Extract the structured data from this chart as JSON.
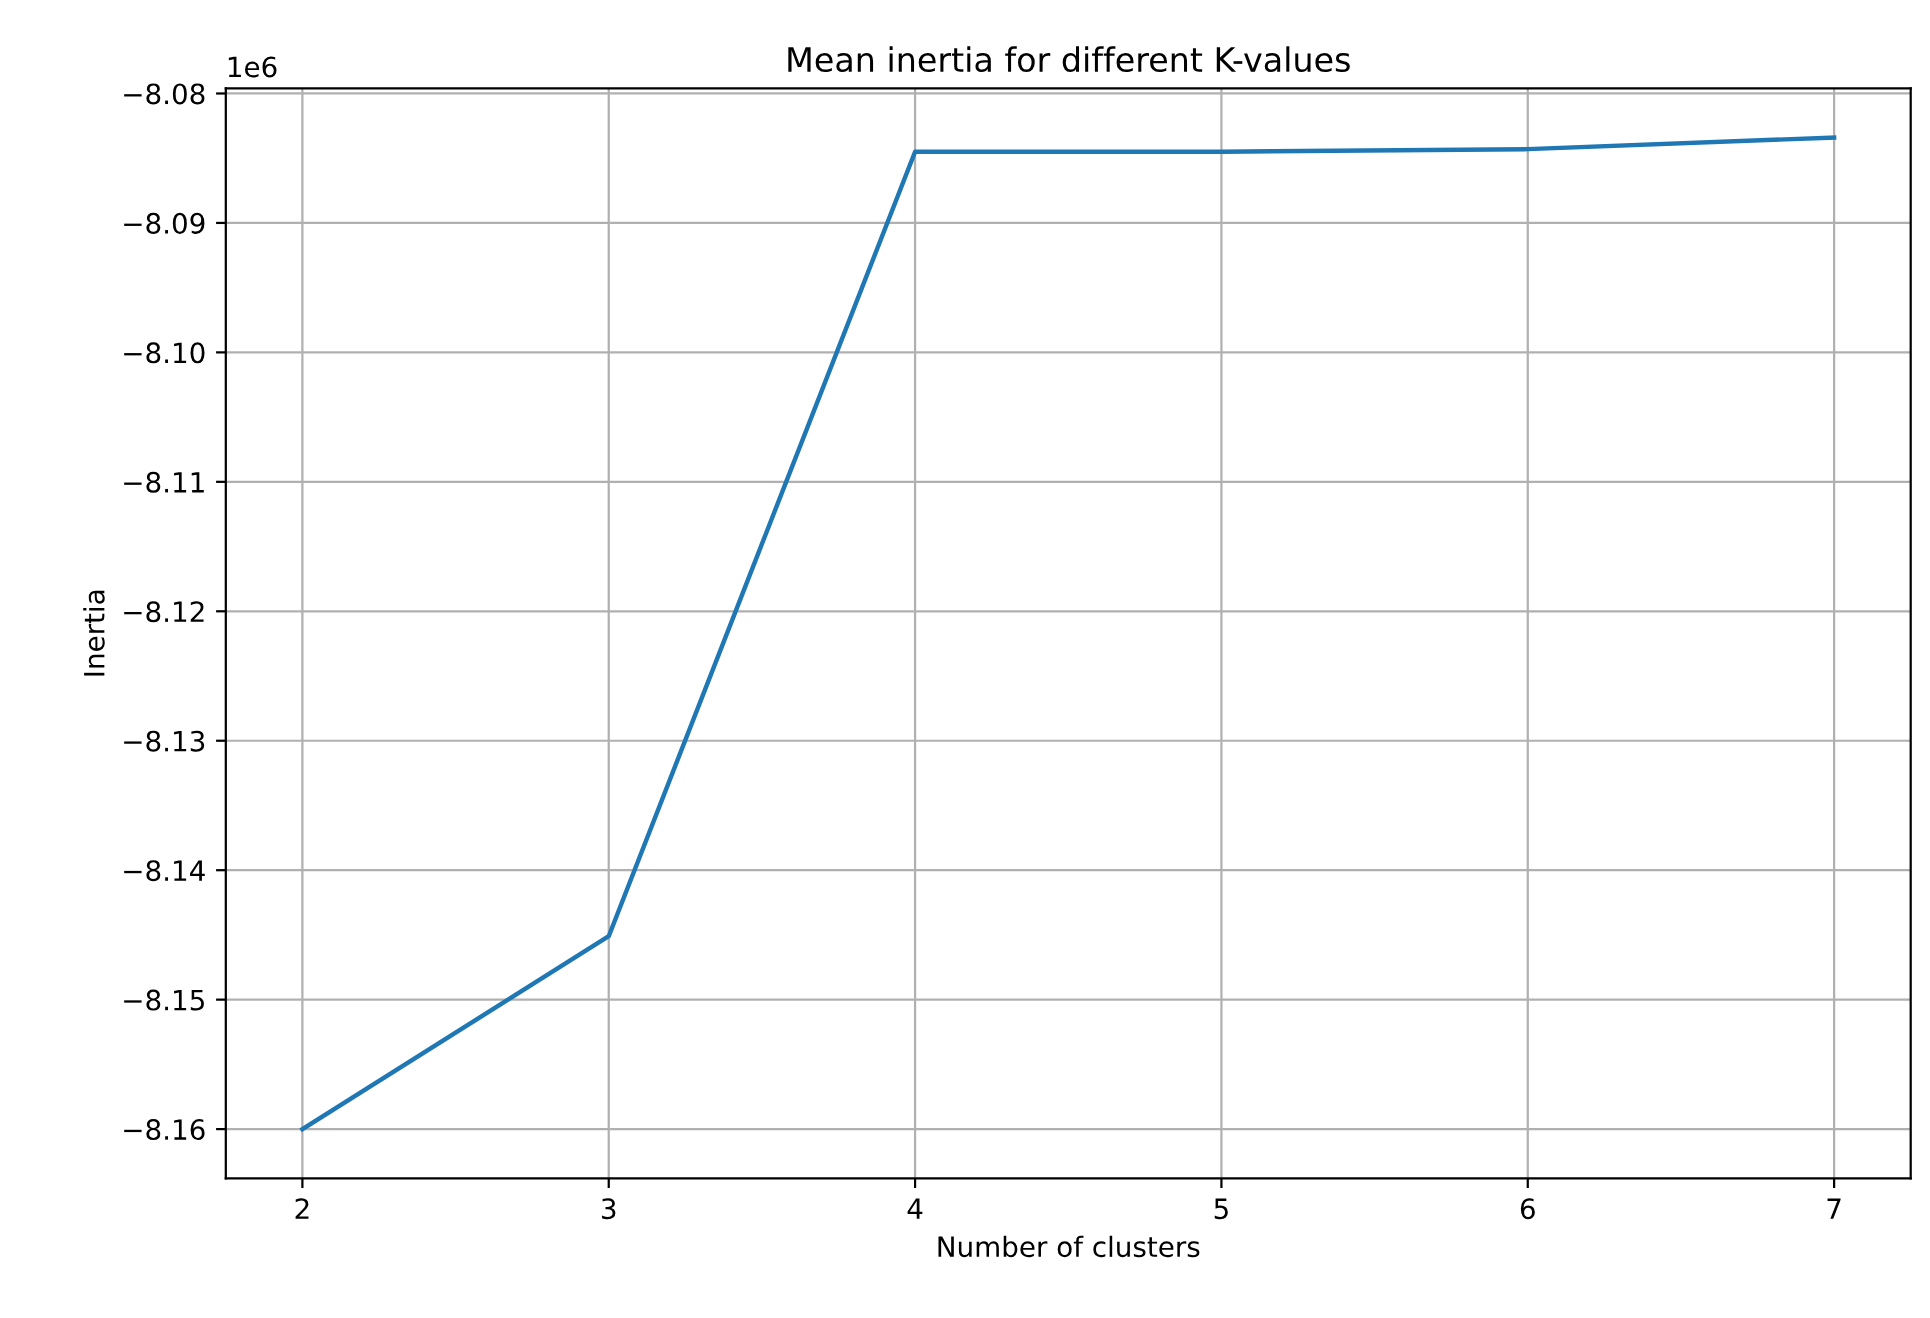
{
  "chart_data": {
    "type": "line",
    "title": "Mean inertia for different K-values",
    "xlabel": "Number of clusters",
    "ylabel": "Inertia",
    "annotations": [
      "1e6"
    ],
    "x": [
      2,
      3,
      4,
      5,
      6,
      7
    ],
    "series": [
      {
        "color": "#1f77b4",
        "values": [
          -8.16,
          -8.1451,
          -8.0845,
          -8.0845,
          -8.0843,
          -8.0834
        ]
      }
    ],
    "xlim": [
      1.75,
      7.25
    ],
    "xticks": [
      2,
      3,
      4,
      5,
      6,
      7
    ],
    "ylim": [
      -8.1638,
      -8.0796
    ],
    "yticks": [
      {
        "value": -8.16,
        "label": "−8.16"
      },
      {
        "value": -8.15,
        "label": "−8.15"
      },
      {
        "value": -8.14,
        "label": "−8.14"
      },
      {
        "value": -8.13,
        "label": "−8.13"
      },
      {
        "value": -8.12,
        "label": "−8.12"
      },
      {
        "value": -8.11,
        "label": "−8.11"
      },
      {
        "value": -8.1,
        "label": "−8.10"
      },
      {
        "value": -8.09,
        "label": "−8.09"
      },
      {
        "value": -8.08,
        "label": "−8.08"
      }
    ],
    "grid": true,
    "line_style": "solid"
  }
}
